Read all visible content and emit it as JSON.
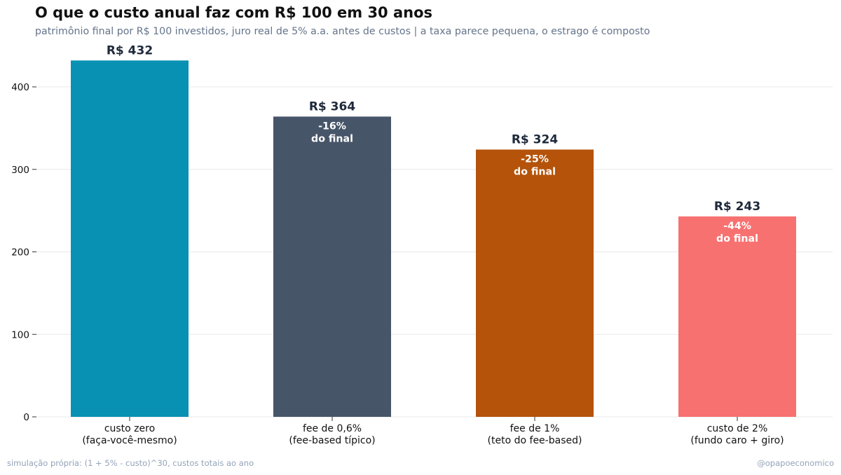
{
  "chart_data": {
    "type": "bar",
    "title": "O que o custo anual faz com R$ 100 em 30 anos",
    "subtitle": "patrimônio final por R$ 100 investidos, juro real de 5% a.a. antes de custos | a taxa parece pequena, o estrago é composto",
    "categories": [
      [
        "custo zero",
        "(faça-você-mesmo)"
      ],
      [
        "fee de 0,6%",
        "(fee-based típico)"
      ],
      [
        "fee de 1%",
        "(teto do fee-based)"
      ],
      [
        "custo de 2%",
        "(fundo caro + giro)"
      ]
    ],
    "values": [
      432,
      364,
      324,
      243
    ],
    "value_labels": [
      "R$ 432",
      "R$ 364",
      "R$ 324",
      "R$ 243"
    ],
    "bar_notes": [
      null,
      [
        "-16%",
        "do final"
      ],
      [
        "-25%",
        "do final"
      ],
      [
        "-44%",
        "do final"
      ]
    ],
    "colors": [
      "#0891b2",
      "#475569",
      "#b45309",
      "#f87171"
    ],
    "ylim": [
      0,
      460
    ],
    "yticks": [
      0,
      100,
      200,
      300,
      400
    ],
    "grid": "horizontal"
  },
  "footer": {
    "source": "simulação própria: (1 + 5% - custo)^30, custos totais ao ano",
    "handle": "@opapoeconomico"
  }
}
